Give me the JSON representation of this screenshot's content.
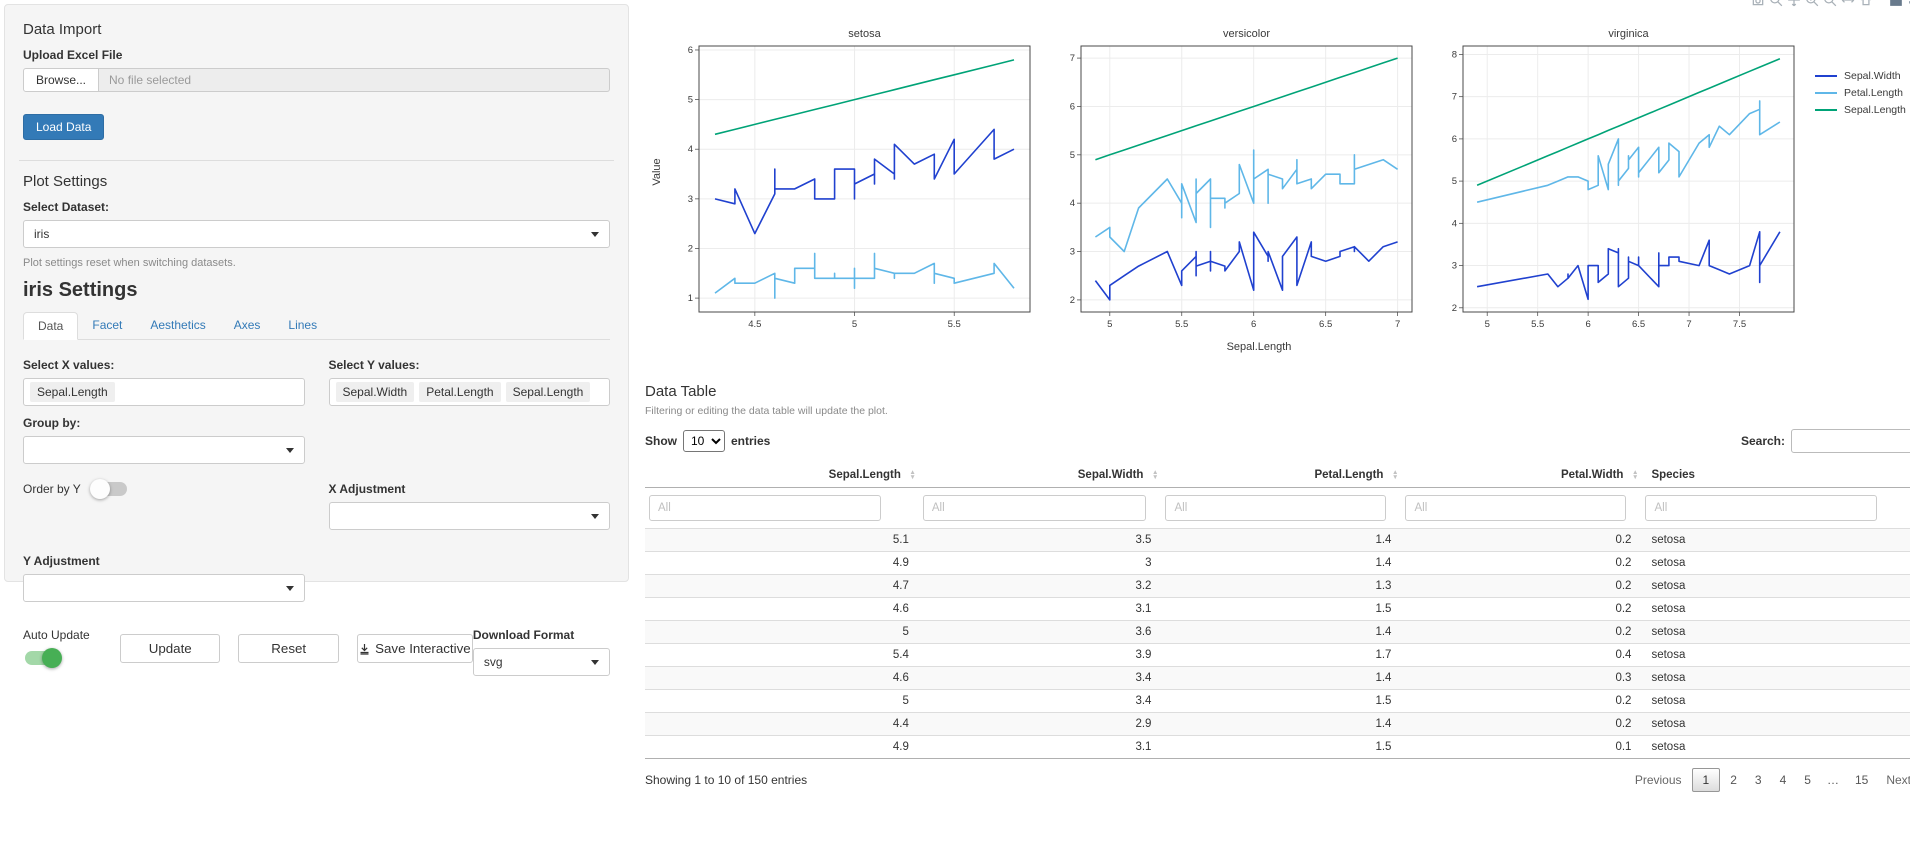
{
  "sidebar": {
    "data_import": {
      "title": "Data Import",
      "upload_label": "Upload Excel File",
      "browse_label": "Browse...",
      "file_placeholder": "No file selected",
      "load_button": "Load Data"
    },
    "plot_settings": {
      "title": "Plot Settings",
      "dataset_label": "Select Dataset:",
      "dataset_value": "iris",
      "help_text": "Plot settings reset when switching datasets."
    },
    "settings": {
      "title": "iris Settings",
      "tabs": [
        "Data",
        "Facet",
        "Aesthetics",
        "Axes",
        "Lines"
      ],
      "active_tab": "Data",
      "x_label": "Select X values:",
      "x_values": [
        "Sepal.Length"
      ],
      "y_label": "Select Y values:",
      "y_values": [
        "Sepal.Width",
        "Petal.Length",
        "Sepal.Length"
      ],
      "group_label": "Group by:",
      "order_toggle_label": "Order by Y",
      "order_toggle_on": false,
      "x_adjust_label": "X Adjustment",
      "y_adjust_label": "Y Adjustment",
      "auto_update_label": "Auto Update",
      "auto_update_on": true,
      "update_button": "Update",
      "reset_button": "Reset",
      "save_button": "Save Interactive",
      "download_label": "Download Format",
      "download_value": "svg"
    }
  },
  "plot": {
    "modebar_icons": [
      "camera-icon",
      "zoom-icon",
      "pan-icon",
      "zoom-in-icon",
      "zoom-out-icon",
      "autoscale-icon",
      "reset-axes-icon",
      "plotly-logo-icon",
      "collapse-icon"
    ]
  },
  "chart_data": {
    "type": "line",
    "xlabel": "Sepal.Length",
    "ylabel": "Value",
    "legend_position": "top-right",
    "grid": true,
    "legend": [
      {
        "name": "Sepal.Width",
        "color": "#2041cf"
      },
      {
        "name": "Petal.Length",
        "color": "#5fb7e8"
      },
      {
        "name": "Sepal.Length",
        "color": "#00a377"
      }
    ],
    "facets": [
      {
        "title": "setosa",
        "xrange": [
          4.22,
          5.88
        ],
        "yrange": [
          0.72,
          6.08
        ],
        "xticks": [
          4.5,
          5,
          5.5
        ],
        "yticks": [
          1,
          2,
          3,
          4,
          5,
          6
        ],
        "x": [
          5.1,
          4.9,
          4.7,
          4.6,
          5.0,
          5.4,
          4.6,
          5.0,
          4.4,
          4.9,
          5.4,
          4.8,
          4.8,
          4.3,
          5.8,
          5.7,
          5.4,
          5.1,
          5.7,
          5.1,
          5.4,
          5.1,
          4.6,
          5.1,
          4.8,
          5.0,
          5.0,
          5.2,
          5.2,
          4.7,
          4.8,
          5.4,
          5.2,
          5.5,
          4.9,
          5.0,
          5.5,
          4.9,
          4.4,
          5.1,
          5.0,
          4.5,
          4.4,
          5.0,
          5.1,
          4.8,
          5.1,
          4.6,
          5.3,
          5.0
        ],
        "series": {
          "Sepal.Width": [
            3.5,
            3.0,
            3.2,
            3.1,
            3.6,
            3.9,
            3.4,
            3.4,
            2.9,
            3.1,
            3.7,
            3.4,
            3.0,
            3.0,
            4.0,
            4.4,
            3.9,
            3.5,
            3.8,
            3.8,
            3.4,
            3.7,
            3.6,
            3.3,
            3.4,
            3.0,
            3.4,
            3.5,
            3.4,
            3.2,
            3.1,
            3.4,
            4.1,
            4.2,
            3.1,
            3.2,
            3.5,
            3.6,
            3.0,
            3.4,
            3.5,
            2.3,
            3.2,
            3.5,
            3.8,
            3.0,
            3.8,
            3.2,
            3.7,
            3.3
          ],
          "Petal.Length": [
            1.4,
            1.4,
            1.3,
            1.5,
            1.4,
            1.7,
            1.4,
            1.5,
            1.4,
            1.5,
            1.5,
            1.6,
            1.4,
            1.1,
            1.2,
            1.5,
            1.3,
            1.4,
            1.7,
            1.5,
            1.7,
            1.5,
            1.0,
            1.7,
            1.9,
            1.6,
            1.6,
            1.5,
            1.4,
            1.6,
            1.6,
            1.5,
            1.5,
            1.4,
            1.5,
            1.2,
            1.3,
            1.4,
            1.3,
            1.5,
            1.3,
            1.3,
            1.3,
            1.6,
            1.9,
            1.4,
            1.6,
            1.4,
            1.5,
            1.4
          ],
          "Sepal.Length": [
            5.1,
            4.9,
            4.7,
            4.6,
            5.0,
            5.4,
            4.6,
            5.0,
            4.4,
            4.9,
            5.4,
            4.8,
            4.8,
            4.3,
            5.8,
            5.7,
            5.4,
            5.1,
            5.7,
            5.1,
            5.4,
            5.1,
            4.6,
            5.1,
            4.8,
            5.0,
            5.0,
            5.2,
            5.2,
            4.7,
            4.8,
            5.4,
            5.2,
            5.5,
            4.9,
            5.0,
            5.5,
            4.9,
            4.4,
            5.1,
            5.0,
            4.5,
            4.4,
            5.0,
            5.1,
            4.8,
            5.1,
            4.6,
            5.3,
            5.0
          ]
        }
      },
      {
        "title": "versicolor",
        "xrange": [
          4.8,
          7.1
        ],
        "yrange": [
          1.75,
          7.25
        ],
        "xticks": [
          5,
          5.5,
          6,
          6.5,
          7
        ],
        "yticks": [
          2,
          3,
          4,
          5,
          6,
          7
        ],
        "x": [
          7.0,
          6.4,
          6.9,
          5.5,
          6.5,
          5.7,
          6.3,
          4.9,
          6.6,
          5.2,
          5.0,
          5.9,
          6.0,
          6.1,
          5.6,
          6.7,
          5.6,
          5.8,
          6.2,
          5.6,
          5.9,
          6.1,
          6.3,
          6.1,
          6.4,
          6.6,
          6.8,
          6.7,
          6.0,
          5.7,
          5.5,
          5.5,
          5.8,
          6.0,
          5.4,
          6.0,
          6.7,
          6.3,
          5.6,
          5.5,
          5.5,
          6.1,
          5.8,
          5.0,
          5.6,
          5.7,
          5.7,
          6.2,
          5.1,
          5.7
        ],
        "series": {
          "Sepal.Width": [
            3.2,
            3.2,
            3.1,
            2.3,
            2.8,
            2.8,
            3.3,
            2.4,
            2.9,
            2.7,
            2.0,
            3.0,
            2.2,
            2.9,
            2.9,
            3.1,
            3.0,
            2.7,
            2.2,
            2.5,
            3.2,
            2.8,
            2.5,
            2.8,
            2.9,
            3.0,
            2.8,
            3.0,
            2.9,
            2.6,
            2.4,
            2.4,
            2.7,
            2.7,
            3.0,
            3.4,
            3.1,
            2.3,
            3.0,
            2.5,
            2.6,
            3.0,
            2.6,
            2.3,
            2.7,
            3.0,
            2.9,
            2.9,
            2.5,
            2.8
          ],
          "Petal.Length": [
            4.7,
            4.5,
            4.9,
            4.0,
            4.6,
            4.5,
            4.7,
            3.3,
            4.6,
            3.9,
            3.5,
            4.2,
            4.0,
            4.7,
            3.6,
            4.4,
            4.5,
            4.1,
            4.5,
            3.9,
            4.8,
            4.0,
            4.9,
            4.7,
            4.3,
            4.4,
            4.8,
            5.0,
            4.5,
            3.5,
            3.8,
            3.7,
            3.9,
            5.1,
            4.5,
            4.5,
            4.7,
            4.4,
            4.1,
            4.0,
            4.4,
            4.6,
            4.0,
            3.3,
            4.2,
            4.2,
            4.2,
            4.3,
            3.0,
            4.1
          ],
          "Sepal.Length": [
            7.0,
            6.4,
            6.9,
            5.5,
            6.5,
            5.7,
            6.3,
            4.9,
            6.6,
            5.2,
            5.0,
            5.9,
            6.0,
            6.1,
            5.6,
            6.7,
            5.6,
            5.8,
            6.2,
            5.6,
            5.9,
            6.1,
            6.3,
            6.1,
            6.4,
            6.6,
            6.8,
            6.7,
            6.0,
            5.7,
            5.5,
            5.5,
            5.8,
            6.0,
            5.4,
            6.0,
            6.7,
            6.3,
            5.6,
            5.5,
            5.5,
            6.1,
            5.8,
            5.0,
            5.6,
            5.7,
            5.7,
            6.2,
            5.1,
            5.7
          ]
        }
      },
      {
        "title": "virginica",
        "xrange": [
          4.76,
          8.04
        ],
        "yrange": [
          1.9,
          8.2
        ],
        "xticks": [
          5,
          5.5,
          6,
          6.5,
          7,
          7.5
        ],
        "yticks": [
          2,
          3,
          4,
          5,
          6,
          7,
          8
        ],
        "x": [
          6.3,
          5.8,
          7.1,
          6.3,
          6.5,
          7.6,
          4.9,
          7.3,
          6.7,
          7.2,
          6.5,
          6.4,
          6.8,
          5.7,
          5.8,
          6.4,
          6.5,
          7.7,
          7.7,
          6.0,
          6.9,
          5.6,
          7.7,
          6.3,
          6.7,
          7.2,
          6.2,
          6.1,
          6.4,
          7.2,
          7.4,
          7.9,
          6.4,
          6.3,
          6.1,
          7.7,
          6.3,
          6.4,
          6.0,
          6.9,
          6.7,
          6.9,
          5.8,
          6.8,
          6.7,
          6.7,
          6.3,
          6.5,
          6.2,
          5.9
        ],
        "series": {
          "Sepal.Width": [
            3.3,
            2.7,
            3.0,
            2.9,
            3.0,
            3.0,
            2.5,
            2.9,
            2.5,
            3.6,
            3.2,
            2.7,
            3.0,
            2.5,
            2.8,
            3.2,
            3.0,
            3.8,
            2.6,
            2.2,
            3.2,
            2.8,
            2.8,
            2.7,
            3.3,
            3.2,
            2.8,
            3.0,
            2.8,
            3.0,
            2.8,
            3.8,
            2.8,
            2.8,
            2.6,
            3.0,
            3.4,
            3.1,
            3.0,
            3.1,
            3.1,
            3.1,
            2.7,
            3.2,
            3.3,
            3.0,
            2.5,
            3.0,
            3.4,
            3.0
          ],
          "Petal.Length": [
            6.0,
            5.1,
            5.9,
            5.6,
            5.8,
            6.6,
            4.5,
            6.3,
            5.8,
            6.1,
            5.1,
            5.3,
            5.5,
            5.0,
            5.1,
            5.3,
            5.5,
            6.7,
            6.9,
            5.0,
            5.7,
            4.9,
            6.7,
            4.9,
            5.7,
            6.0,
            4.8,
            4.9,
            5.6,
            5.8,
            6.1,
            6.4,
            5.6,
            5.1,
            5.6,
            6.1,
            5.6,
            5.5,
            4.8,
            5.4,
            5.6,
            5.1,
            5.1,
            5.9,
            5.7,
            5.2,
            5.0,
            5.2,
            5.4,
            5.1
          ],
          "Sepal.Length": [
            6.3,
            5.8,
            7.1,
            6.3,
            6.5,
            7.6,
            4.9,
            7.3,
            6.7,
            7.2,
            6.5,
            6.4,
            6.8,
            5.7,
            5.8,
            6.4,
            6.5,
            7.7,
            7.7,
            6.0,
            6.9,
            5.6,
            7.7,
            6.3,
            6.7,
            7.2,
            6.2,
            6.1,
            6.4,
            7.2,
            7.4,
            7.9,
            6.4,
            6.3,
            6.1,
            7.7,
            6.3,
            6.4,
            6.0,
            6.9,
            6.7,
            6.9,
            5.8,
            6.8,
            6.7,
            6.7,
            6.3,
            6.5,
            6.2,
            5.9
          ]
        }
      }
    ]
  },
  "table": {
    "title": "Data Table",
    "subtitle": "Filtering or editing the data table will update the plot.",
    "show_label": "Show",
    "page_length": "10",
    "entries_label": "entries",
    "search_label": "Search:",
    "columns": [
      "Sepal.Length",
      "Sepal.Width",
      "Petal.Length",
      "Petal.Width",
      "Species"
    ],
    "filter_placeholder": "All",
    "rows": [
      [
        "5.1",
        "3.5",
        "1.4",
        "0.2",
        "setosa"
      ],
      [
        "4.9",
        "3",
        "1.4",
        "0.2",
        "setosa"
      ],
      [
        "4.7",
        "3.2",
        "1.3",
        "0.2",
        "setosa"
      ],
      [
        "4.6",
        "3.1",
        "1.5",
        "0.2",
        "setosa"
      ],
      [
        "5",
        "3.6",
        "1.4",
        "0.2",
        "setosa"
      ],
      [
        "5.4",
        "3.9",
        "1.7",
        "0.4",
        "setosa"
      ],
      [
        "4.6",
        "3.4",
        "1.4",
        "0.3",
        "setosa"
      ],
      [
        "5",
        "3.4",
        "1.5",
        "0.2",
        "setosa"
      ],
      [
        "4.4",
        "2.9",
        "1.4",
        "0.2",
        "setosa"
      ],
      [
        "4.9",
        "3.1",
        "1.5",
        "0.1",
        "setosa"
      ]
    ],
    "info": "Showing 1 to 10 of 150 entries",
    "pagination": {
      "previous": "Previous",
      "pages": [
        "1",
        "2",
        "3",
        "4",
        "5",
        "…",
        "15"
      ],
      "active": "1",
      "next": "Next"
    }
  }
}
